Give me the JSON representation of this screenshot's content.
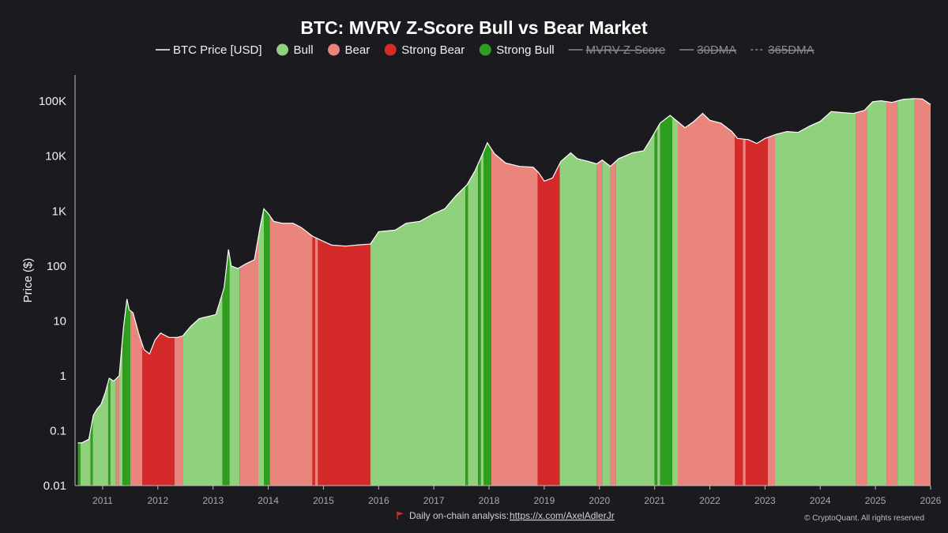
{
  "chart_data": {
    "type": "area",
    "title": "BTC: MVRV Z-Score Bull vs Bear Market",
    "xlabel": "",
    "ylabel": "Price ($)",
    "yscale": "log",
    "ylim": [
      0.01,
      300000
    ],
    "xlim": [
      2010.5,
      2026.0
    ],
    "y_ticks": [
      {
        "value": 0.01,
        "label": "0.01"
      },
      {
        "value": 0.1,
        "label": "0.1"
      },
      {
        "value": 1,
        "label": "1"
      },
      {
        "value": 10,
        "label": "10"
      },
      {
        "value": 100,
        "label": "100"
      },
      {
        "value": 1000,
        "label": "1K"
      },
      {
        "value": 10000,
        "label": "10K"
      },
      {
        "value": 100000,
        "label": "100K"
      }
    ],
    "x_ticks": [
      "2011",
      "2012",
      "2013",
      "2014",
      "2015",
      "2016",
      "2017",
      "2018",
      "2019",
      "2020",
      "2021",
      "2022",
      "2023",
      "2024",
      "2025",
      "2026"
    ],
    "legend": [
      {
        "name": "BTC Price [USD]",
        "marker": "line",
        "color": "#ffffff",
        "enabled": true
      },
      {
        "name": "Bull",
        "marker": "dot",
        "color": "#8fd17c",
        "enabled": true
      },
      {
        "name": "Bear",
        "marker": "dot",
        "color": "#e9857c",
        "enabled": true
      },
      {
        "name": "Strong Bear",
        "marker": "dot",
        "color": "#d42a2a",
        "enabled": true
      },
      {
        "name": "Strong Bull",
        "marker": "dot",
        "color": "#2f9e1f",
        "enabled": true
      },
      {
        "name": "MVRV Z-Score",
        "marker": "line",
        "color": "#8a8a8e",
        "enabled": false
      },
      {
        "name": "30DMA",
        "marker": "line",
        "color": "#8a8a8e",
        "enabled": false
      },
      {
        "name": "365DMA",
        "marker": "dash",
        "color": "#8a8a8e",
        "enabled": false
      }
    ],
    "regime_colors": {
      "bull": "#8fd17c",
      "bear": "#e9857c",
      "strong_bear": "#d42a2a",
      "strong_bull": "#2f9e1f"
    },
    "price_series": {
      "name": "BTC Price [USD]",
      "x": [
        2010.55,
        2010.62,
        2010.75,
        2010.83,
        2010.9,
        2010.97,
        2011.05,
        2011.12,
        2011.2,
        2011.3,
        2011.38,
        2011.44,
        2011.48,
        2011.55,
        2011.65,
        2011.75,
        2011.85,
        2011.95,
        2012.05,
        2012.2,
        2012.35,
        2012.45,
        2012.6,
        2012.75,
        2012.9,
        2013.05,
        2013.2,
        2013.28,
        2013.33,
        2013.45,
        2013.6,
        2013.75,
        2013.85,
        2013.92,
        2014.0,
        2014.1,
        2014.25,
        2014.45,
        2014.6,
        2014.8,
        2015.0,
        2015.15,
        2015.4,
        2015.6,
        2015.85,
        2016.0,
        2016.3,
        2016.5,
        2016.75,
        2017.0,
        2017.2,
        2017.4,
        2017.6,
        2017.75,
        2017.9,
        2017.97,
        2018.1,
        2018.3,
        2018.55,
        2018.8,
        2018.9,
        2019.0,
        2019.15,
        2019.3,
        2019.48,
        2019.6,
        2019.8,
        2019.95,
        2020.05,
        2020.2,
        2020.35,
        2020.6,
        2020.8,
        2020.95,
        2021.1,
        2021.28,
        2021.45,
        2021.55,
        2021.7,
        2021.87,
        2022.0,
        2022.2,
        2022.4,
        2022.5,
        2022.7,
        2022.85,
        2023.0,
        2023.2,
        2023.4,
        2023.6,
        2023.8,
        2024.0,
        2024.2,
        2024.4,
        2024.6,
        2024.8,
        2024.95,
        2025.1,
        2025.3,
        2025.5,
        2025.7,
        2025.85,
        2026.0
      ],
      "values": [
        0.06,
        0.06,
        0.07,
        0.19,
        0.25,
        0.3,
        0.5,
        0.9,
        0.8,
        1.0,
        8,
        25,
        16,
        14,
        6,
        3,
        2.5,
        4.5,
        6,
        5,
        5,
        5.3,
        8,
        11,
        12,
        13,
        40,
        200,
        100,
        90,
        110,
        130,
        500,
        1100,
        900,
        650,
        600,
        600,
        500,
        350,
        280,
        240,
        230,
        240,
        250,
        420,
        450,
        600,
        650,
        900,
        1100,
        1900,
        3000,
        5500,
        12000,
        17500,
        11000,
        7500,
        6500,
        6300,
        5000,
        3500,
        4000,
        8000,
        11500,
        9000,
        8000,
        7200,
        8500,
        6500,
        9000,
        11500,
        12500,
        22000,
        40000,
        55000,
        40000,
        33000,
        42000,
        60000,
        45000,
        40000,
        28000,
        21000,
        20000,
        17000,
        21000,
        25000,
        28000,
        27000,
        35000,
        43000,
        65000,
        62000,
        60000,
        68000,
        98000,
        102000,
        95000,
        108000,
        112000,
        110000,
        87000
      ]
    },
    "regimes": [
      {
        "start": 2010.55,
        "end": 2010.6,
        "state": "strong_bull"
      },
      {
        "start": 2010.6,
        "end": 2010.78,
        "state": "bull"
      },
      {
        "start": 2010.78,
        "end": 2010.82,
        "state": "strong_bull"
      },
      {
        "start": 2010.82,
        "end": 2011.1,
        "state": "bull"
      },
      {
        "start": 2011.1,
        "end": 2011.14,
        "state": "strong_bull"
      },
      {
        "start": 2011.14,
        "end": 2011.24,
        "state": "bull"
      },
      {
        "start": 2011.24,
        "end": 2011.3,
        "state": "bear"
      },
      {
        "start": 2011.3,
        "end": 2011.36,
        "state": "bull"
      },
      {
        "start": 2011.36,
        "end": 2011.5,
        "state": "strong_bull"
      },
      {
        "start": 2011.5,
        "end": 2011.72,
        "state": "bear"
      },
      {
        "start": 2011.72,
        "end": 2012.3,
        "state": "strong_bear"
      },
      {
        "start": 2012.3,
        "end": 2012.45,
        "state": "bear"
      },
      {
        "start": 2012.45,
        "end": 2013.17,
        "state": "bull"
      },
      {
        "start": 2013.17,
        "end": 2013.3,
        "state": "strong_bull"
      },
      {
        "start": 2013.3,
        "end": 2013.48,
        "state": "bull"
      },
      {
        "start": 2013.48,
        "end": 2013.82,
        "state": "bear"
      },
      {
        "start": 2013.82,
        "end": 2013.92,
        "state": "bull"
      },
      {
        "start": 2013.92,
        "end": 2014.03,
        "state": "strong_bull"
      },
      {
        "start": 2014.03,
        "end": 2014.8,
        "state": "bear"
      },
      {
        "start": 2014.8,
        "end": 2014.85,
        "state": "strong_bear"
      },
      {
        "start": 2014.85,
        "end": 2014.9,
        "state": "bear"
      },
      {
        "start": 2014.9,
        "end": 2015.85,
        "state": "strong_bear"
      },
      {
        "start": 2015.85,
        "end": 2017.57,
        "state": "bull"
      },
      {
        "start": 2017.57,
        "end": 2017.62,
        "state": "strong_bull"
      },
      {
        "start": 2017.62,
        "end": 2017.8,
        "state": "bull"
      },
      {
        "start": 2017.8,
        "end": 2017.85,
        "state": "strong_bull"
      },
      {
        "start": 2017.85,
        "end": 2017.9,
        "state": "bull"
      },
      {
        "start": 2017.9,
        "end": 2018.04,
        "state": "strong_bull"
      },
      {
        "start": 2018.04,
        "end": 2018.88,
        "state": "bear"
      },
      {
        "start": 2018.88,
        "end": 2019.28,
        "state": "strong_bear"
      },
      {
        "start": 2019.28,
        "end": 2019.95,
        "state": "bull"
      },
      {
        "start": 2019.95,
        "end": 2020.05,
        "state": "bear"
      },
      {
        "start": 2020.05,
        "end": 2020.2,
        "state": "bull"
      },
      {
        "start": 2020.2,
        "end": 2020.3,
        "state": "bear"
      },
      {
        "start": 2020.3,
        "end": 2021.0,
        "state": "bull"
      },
      {
        "start": 2021.0,
        "end": 2021.05,
        "state": "strong_bull"
      },
      {
        "start": 2021.05,
        "end": 2021.1,
        "state": "bull"
      },
      {
        "start": 2021.1,
        "end": 2021.32,
        "state": "strong_bull"
      },
      {
        "start": 2021.32,
        "end": 2021.42,
        "state": "bull"
      },
      {
        "start": 2021.42,
        "end": 2022.45,
        "state": "bear"
      },
      {
        "start": 2022.45,
        "end": 2022.6,
        "state": "strong_bear"
      },
      {
        "start": 2022.6,
        "end": 2022.65,
        "state": "bear"
      },
      {
        "start": 2022.65,
        "end": 2023.05,
        "state": "strong_bear"
      },
      {
        "start": 2023.05,
        "end": 2023.18,
        "state": "bear"
      },
      {
        "start": 2023.18,
        "end": 2024.65,
        "state": "bull"
      },
      {
        "start": 2024.65,
        "end": 2024.85,
        "state": "bear"
      },
      {
        "start": 2024.85,
        "end": 2025.2,
        "state": "bull"
      },
      {
        "start": 2025.2,
        "end": 2025.4,
        "state": "bear"
      },
      {
        "start": 2025.4,
        "end": 2025.7,
        "state": "bull"
      },
      {
        "start": 2025.7,
        "end": 2026.0,
        "state": "bear"
      }
    ]
  },
  "footer": {
    "text": "Daily on-chain analysis:",
    "link": "https://x.com/AxelAdlerJr",
    "copyright": "© CryptoQuant. All rights reserved"
  }
}
